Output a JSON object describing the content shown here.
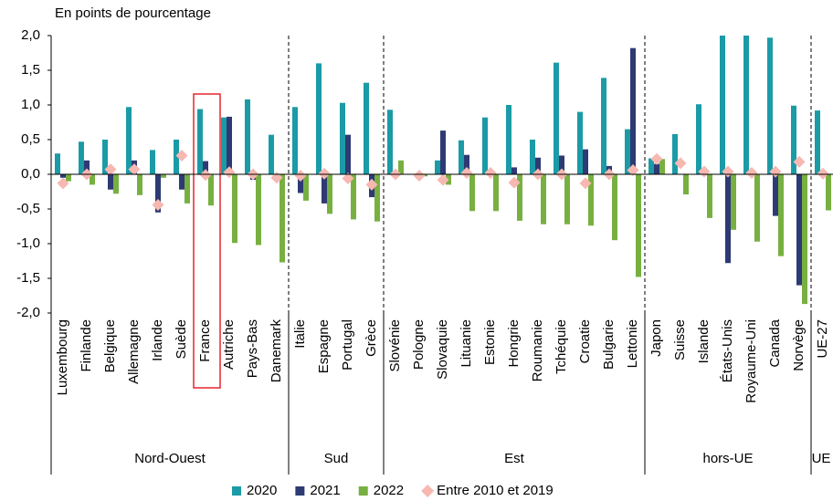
{
  "chart_data": {
    "type": "bar",
    "y_axis_label": "En points de pourcentage",
    "groups": [
      {
        "name": "Nord-Ouest",
        "categories": [
          "Luxembourg",
          "Finlande",
          "Belgique",
          "Allemagne",
          "Irlande",
          "Suède",
          "France",
          "Autriche",
          "Pays-Bas",
          "Danemark"
        ]
      },
      {
        "name": "Sud",
        "categories": [
          "Italie",
          "Espagne",
          "Portugal",
          "Grèce"
        ]
      },
      {
        "name": "Est",
        "categories": [
          "Slovénie",
          "Pologne",
          "Slovaquie",
          "Lituanie",
          "Estonie",
          "Hongrie",
          "Roumanie",
          "Tchéquie",
          "Croatie",
          "Bulgarie",
          "Lettonie"
        ]
      },
      {
        "name": "hors-UE",
        "categories": [
          "Japon",
          "Suisse",
          "Islande",
          "États-Unis",
          "Royaume-Uni",
          "Canada",
          "Norvège"
        ]
      },
      {
        "name": "UE",
        "categories": [
          "UE-27"
        ]
      }
    ],
    "series": [
      {
        "name": "2020",
        "color": "#1a9ba6",
        "values": [
          0.3,
          0.47,
          0.5,
          0.97,
          0.35,
          0.5,
          0.94,
          0.82,
          1.08,
          0.57,
          0.97,
          1.6,
          1.03,
          1.32,
          0.93,
          0.0,
          0.2,
          0.49,
          0.82,
          1.0,
          0.5,
          1.61,
          0.9,
          1.39,
          0.65,
          0.23,
          0.58,
          1.01,
          2.0,
          2.0,
          1.97,
          0.99,
          0.92
        ]
      },
      {
        "name": "2021",
        "color": "#2e3a73",
        "values": [
          -0.05,
          0.2,
          -0.22,
          0.2,
          -0.55,
          -0.22,
          0.19,
          0.83,
          -0.08,
          0.0,
          -0.27,
          -0.42,
          0.57,
          -0.33,
          0.0,
          0.0,
          0.63,
          0.28,
          0.0,
          0.1,
          0.24,
          0.27,
          0.36,
          0.12,
          1.82,
          0.15,
          0.0,
          0.0,
          -1.28,
          0.0,
          -0.6,
          -1.6,
          0.0
        ]
      },
      {
        "name": "2022",
        "color": "#77b041",
        "values": [
          -0.1,
          -0.15,
          -0.28,
          -0.3,
          -0.05,
          -0.42,
          -0.45,
          -0.99,
          -1.02,
          -1.27,
          -0.38,
          -0.57,
          -0.65,
          -0.68,
          0.2,
          -0.03,
          -0.15,
          -0.53,
          -0.53,
          -0.67,
          -0.72,
          -0.72,
          -0.74,
          -0.95,
          -1.48,
          0.22,
          -0.29,
          -0.63,
          -0.8,
          -0.97,
          -1.18,
          -1.87,
          -0.52
        ]
      },
      {
        "name": "Entre 2010 et 2019",
        "color": "#f6b8b1",
        "marker": "diamond",
        "values": [
          -0.13,
          0.0,
          0.07,
          0.07,
          -0.44,
          0.27,
          -0.01,
          0.03,
          0.0,
          -0.05,
          -0.02,
          0.01,
          -0.06,
          -0.15,
          0.0,
          -0.02,
          -0.08,
          0.02,
          0.02,
          -0.12,
          0.0,
          0.0,
          -0.13,
          0.0,
          0.06,
          0.22,
          0.16,
          0.04,
          0.04,
          0.02,
          0.04,
          0.18,
          0.01
        ]
      }
    ],
    "ylim": [
      -2.0,
      2.0
    ],
    "yticks": [
      {
        "value": -2.0,
        "label": "-2,0"
      },
      {
        "value": -1.5,
        "label": "-1,5"
      },
      {
        "value": -1.0,
        "label": "-1,0"
      },
      {
        "value": -0.5,
        "label": "-0,5"
      },
      {
        "value": 0.0,
        "label": "0,0"
      },
      {
        "value": 0.5,
        "label": "0,5"
      },
      {
        "value": 1.0,
        "label": "1,0"
      },
      {
        "value": 1.5,
        "label": "1,5"
      },
      {
        "value": 2.0,
        "label": "2,0"
      }
    ],
    "legend": "bottom"
  }
}
